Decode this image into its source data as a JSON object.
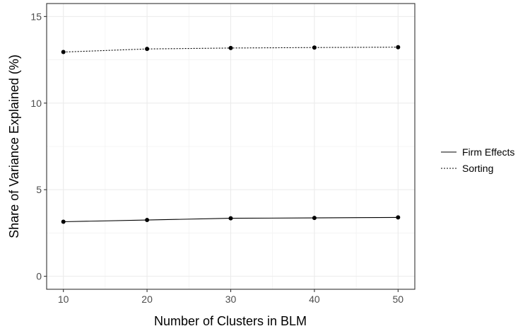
{
  "chart_data": {
    "type": "line",
    "title": "",
    "xlabel": "Number of Clusters in BLM",
    "ylabel": "Share of Variance Explained (%)",
    "xlim": [
      8,
      52
    ],
    "ylim": [
      -0.75,
      15.75
    ],
    "x_ticks": [
      10,
      20,
      30,
      40,
      50
    ],
    "y_ticks": [
      0,
      5,
      10,
      15
    ],
    "x_tick_labels": [
      "10",
      "20",
      "30",
      "40",
      "50"
    ],
    "y_tick_labels": [
      "0",
      "5",
      "10",
      "15"
    ],
    "grid": true,
    "legend_position": "right",
    "x": [
      10,
      20,
      30,
      40,
      50
    ],
    "series": [
      {
        "name": "Firm Effects",
        "line_style": "solid",
        "values": [
          3.15,
          3.25,
          3.35,
          3.37,
          3.4
        ]
      },
      {
        "name": "Sorting",
        "line_style": "dotted",
        "values": [
          12.95,
          13.13,
          13.18,
          13.21,
          13.23
        ]
      }
    ]
  }
}
